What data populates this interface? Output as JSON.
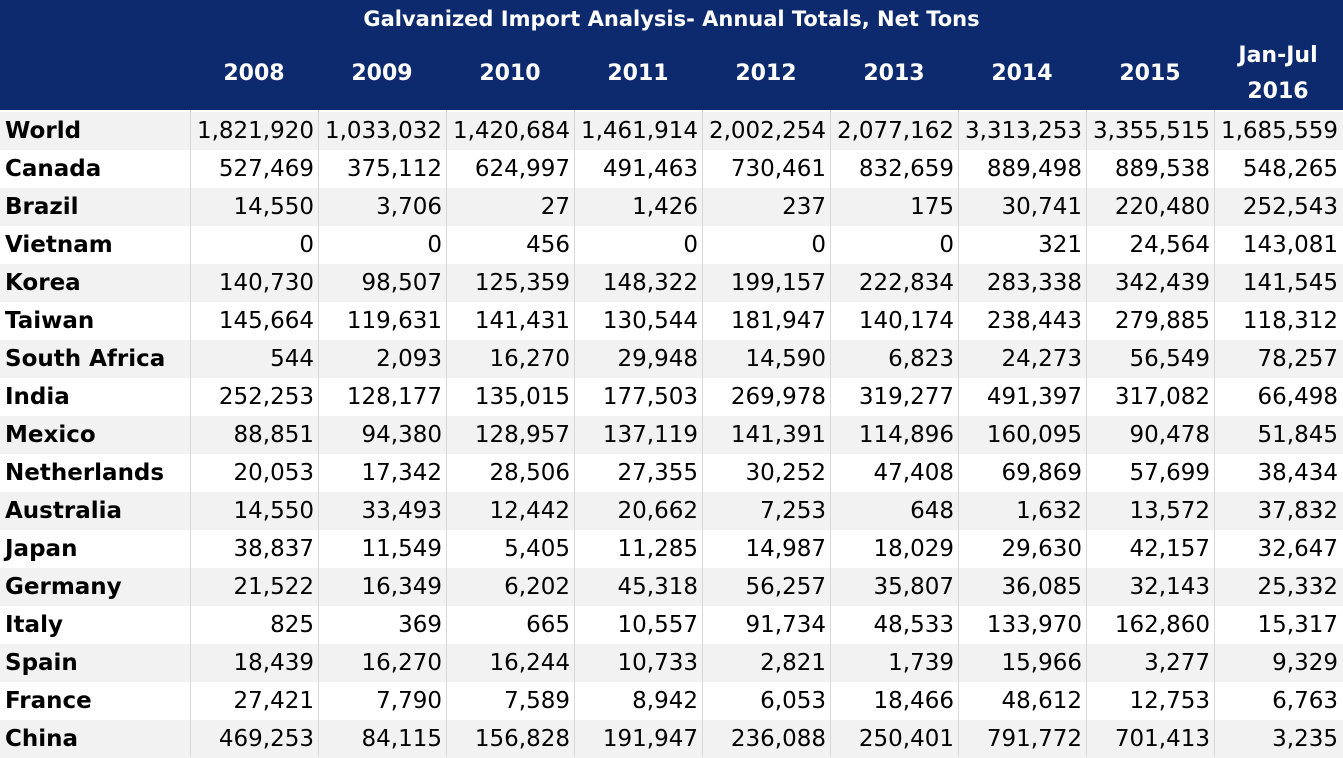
{
  "title": "Galvanized Import Analysis- Annual Totals, Net Tons",
  "colors": {
    "header_bg": "#0e2a6e",
    "header_text": "#ffffff",
    "stripe": "#f2f2f2"
  },
  "chart_data": {
    "type": "table",
    "title": "Galvanized Import Analysis- Annual Totals, Net Tons",
    "columns": [
      "2008",
      "2009",
      "2010",
      "2011",
      "2012",
      "2013",
      "2014",
      "2015",
      "Jan-Jul\n2016"
    ],
    "rows": [
      {
        "name": "World",
        "values": [
          "1,821,920",
          "1,033,032",
          "1,420,684",
          "1,461,914",
          "2,002,254",
          "2,077,162",
          "3,313,253",
          "3,355,515",
          "1,685,559"
        ]
      },
      {
        "name": "Canada",
        "values": [
          "527,469",
          "375,112",
          "624,997",
          "491,463",
          "730,461",
          "832,659",
          "889,498",
          "889,538",
          "548,265"
        ]
      },
      {
        "name": "Brazil",
        "values": [
          "14,550",
          "3,706",
          "27",
          "1,426",
          "237",
          "175",
          "30,741",
          "220,480",
          "252,543"
        ]
      },
      {
        "name": "Vietnam",
        "values": [
          "0",
          "0",
          "456",
          "0",
          "0",
          "0",
          "321",
          "24,564",
          "143,081"
        ]
      },
      {
        "name": "Korea",
        "values": [
          "140,730",
          "98,507",
          "125,359",
          "148,322",
          "199,157",
          "222,834",
          "283,338",
          "342,439",
          "141,545"
        ]
      },
      {
        "name": "Taiwan",
        "values": [
          "145,664",
          "119,631",
          "141,431",
          "130,544",
          "181,947",
          "140,174",
          "238,443",
          "279,885",
          "118,312"
        ]
      },
      {
        "name": "South Africa",
        "values": [
          "544",
          "2,093",
          "16,270",
          "29,948",
          "14,590",
          "6,823",
          "24,273",
          "56,549",
          "78,257"
        ]
      },
      {
        "name": "India",
        "values": [
          "252,253",
          "128,177",
          "135,015",
          "177,503",
          "269,978",
          "319,277",
          "491,397",
          "317,082",
          "66,498"
        ]
      },
      {
        "name": "Mexico",
        "values": [
          "88,851",
          "94,380",
          "128,957",
          "137,119",
          "141,391",
          "114,896",
          "160,095",
          "90,478",
          "51,845"
        ]
      },
      {
        "name": "Netherlands",
        "values": [
          "20,053",
          "17,342",
          "28,506",
          "27,355",
          "30,252",
          "47,408",
          "69,869",
          "57,699",
          "38,434"
        ]
      },
      {
        "name": "Australia",
        "values": [
          "14,550",
          "33,493",
          "12,442",
          "20,662",
          "7,253",
          "648",
          "1,632",
          "13,572",
          "37,832"
        ]
      },
      {
        "name": "Japan",
        "values": [
          "38,837",
          "11,549",
          "5,405",
          "11,285",
          "14,987",
          "18,029",
          "29,630",
          "42,157",
          "32,647"
        ]
      },
      {
        "name": "Germany",
        "values": [
          "21,522",
          "16,349",
          "6,202",
          "45,318",
          "56,257",
          "35,807",
          "36,085",
          "32,143",
          "25,332"
        ]
      },
      {
        "name": "Italy",
        "values": [
          "825",
          "369",
          "665",
          "10,557",
          "91,734",
          "48,533",
          "133,970",
          "162,860",
          "15,317"
        ]
      },
      {
        "name": "Spain",
        "values": [
          "18,439",
          "16,270",
          "16,244",
          "10,733",
          "2,821",
          "1,739",
          "15,966",
          "3,277",
          "9,329"
        ]
      },
      {
        "name": "France",
        "values": [
          "27,421",
          "7,790",
          "7,589",
          "8,942",
          "6,053",
          "18,466",
          "48,612",
          "12,753",
          "6,763"
        ]
      },
      {
        "name": "China",
        "values": [
          "469,253",
          "84,115",
          "156,828",
          "191,947",
          "236,088",
          "250,401",
          "791,772",
          "701,413",
          "3,235"
        ]
      }
    ]
  }
}
